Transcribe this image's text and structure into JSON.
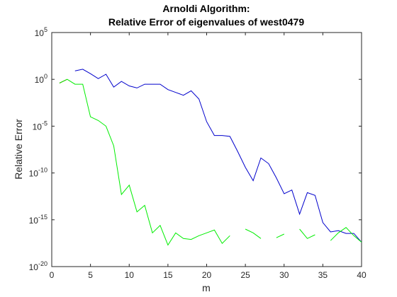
{
  "chart_data": {
    "type": "line",
    "title_lines": [
      "Arnoldi Algorithm:",
      "Relative Error of eigenvalues of west0479"
    ],
    "xlabel": "m",
    "ylabel": "Relative Error",
    "xlim": [
      0,
      40
    ],
    "ylim": [
      1e-20,
      100000.0
    ],
    "yscale": "log",
    "grid": false,
    "x_ticks": [
      0,
      5,
      10,
      15,
      20,
      25,
      30,
      35,
      40
    ],
    "y_ticks": [
      {
        "value": 100000.0,
        "base": "10",
        "exp": "5"
      },
      {
        "value": 1,
        "base": "10",
        "exp": "0"
      },
      {
        "value": 1e-05,
        "base": "10",
        "exp": "-5"
      },
      {
        "value": 1e-10,
        "base": "10",
        "exp": "-10"
      },
      {
        "value": 1e-15,
        "base": "10",
        "exp": "-15"
      },
      {
        "value": 1e-20,
        "base": "10",
        "exp": "-20"
      }
    ],
    "series": [
      {
        "color": "#ff0000",
        "x": [
          1,
          2
        ],
        "y": [
          0.4,
          1.0
        ]
      },
      {
        "color": "#0000cc",
        "x": [
          3,
          4,
          5,
          6,
          7,
          8,
          9,
          10,
          11,
          12,
          13,
          14,
          15,
          16,
          17,
          18,
          19,
          20,
          21,
          22,
          23,
          24,
          25,
          26,
          27,
          28,
          29,
          30,
          31,
          32,
          33,
          34,
          35,
          36,
          37,
          38,
          39,
          40
        ],
        "y": [
          8,
          12,
          4,
          1.2,
          3.5,
          0.15,
          0.6,
          0.2,
          0.12,
          0.3,
          0.3,
          0.3,
          0.08,
          0.04,
          0.02,
          0.06,
          0.008,
          3e-05,
          1e-06,
          1e-06,
          8e-07,
          2e-08,
          4e-10,
          1.5e-11,
          4e-09,
          1e-09,
          3e-11,
          6e-13,
          1.5e-12,
          4e-15,
          8e-13,
          4e-13,
          5e-16,
          5e-17,
          7e-17,
          3.5e-17,
          3.5e-17,
          4e-18
        ]
      },
      {
        "color": "#00ee00",
        "x": [
          1,
          2,
          3,
          4,
          5,
          6,
          7,
          8,
          9,
          10,
          11,
          12,
          13,
          14,
          15,
          16,
          17,
          18,
          19,
          20,
          21,
          22,
          23,
          null,
          25,
          26,
          27,
          null,
          29,
          30,
          null,
          32,
          33,
          34,
          null,
          36,
          37,
          38,
          39,
          40
        ],
        "y": [
          0.4,
          1.0,
          0.3,
          0.3,
          0.0001,
          4e-05,
          1e-05,
          8e-08,
          5e-13,
          5e-12,
          7e-15,
          3.5e-14,
          4e-17,
          2.5e-16,
          2e-18,
          4e-17,
          1e-17,
          8e-18,
          2e-17,
          4e-17,
          8e-17,
          3e-18,
          2e-17,
          null,
          1e-16,
          4e-17,
          1e-17,
          null,
          1.2e-17,
          3e-17,
          null,
          1e-16,
          1e-17,
          2.5e-17,
          null,
          6e-18,
          4e-17,
          1.5e-16,
          2e-17,
          4e-18
        ]
      }
    ]
  }
}
